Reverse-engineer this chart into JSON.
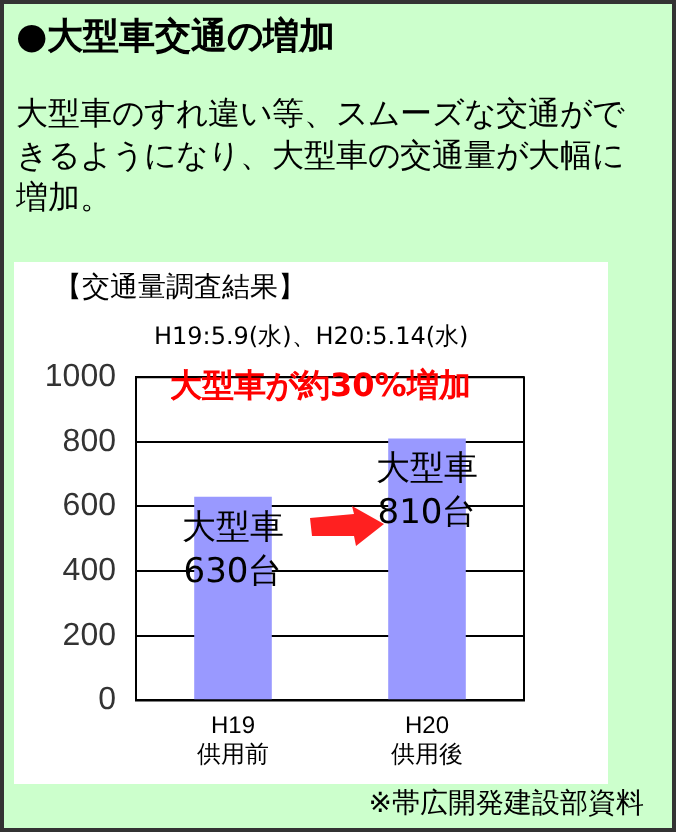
{
  "chart_data": {
    "type": "bar",
    "title": "●大型車交通の増加",
    "subtitle": "大型車のすれ違い等、スムーズな交通ができるようになり、大型車の交通量が大幅に増加。",
    "categories": [
      "H19\n供用前",
      "H20\n供用後"
    ],
    "values": [
      630,
      810
    ],
    "color": "#9999ff",
    "value_labels": [
      "大型車\n630台",
      "大型車\n810台"
    ],
    "ylim": [
      0,
      1000
    ],
    "yticks": [
      0,
      200,
      400,
      600,
      800,
      1000
    ],
    "grid": "y",
    "legend": false,
    "annotations": [
      "【交通量調査結果】",
      "H19:5.9(水)、H20:5.14(水)",
      "大型車が約30%増加",
      "※帯広開発建設部資料"
    ]
  }
}
